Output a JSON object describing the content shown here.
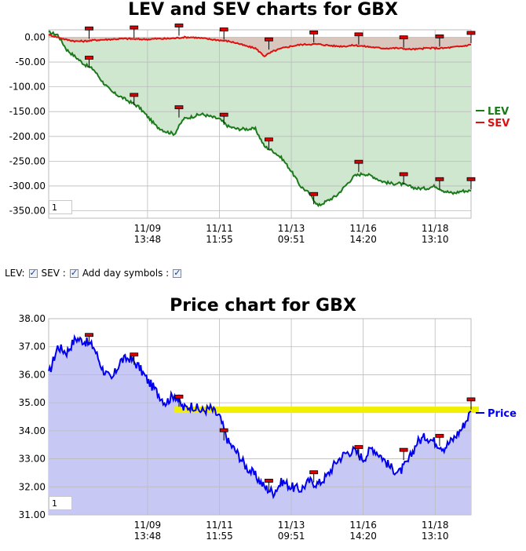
{
  "colors": {
    "lev": "#1a7a1a",
    "sev": "#e01010",
    "price": "#0000ee",
    "lev_fill": "#cfe6cf",
    "sev_fill": "#d9c6bc",
    "price_fill": "#c8c8f4",
    "highlight": "#f0f000",
    "marker": "#dd0000"
  },
  "controls": {
    "lev_label": "LEV:",
    "lev_checked": true,
    "sev_label": "SEV :",
    "sev_checked": true,
    "day_symbols_label": "Add day symbols :",
    "day_symbols_checked": true
  },
  "chart_data": [
    {
      "type": "line",
      "title": "LEV and SEV charts for GBX",
      "xlabel": "",
      "ylabel": "",
      "ylim": [
        -365,
        15
      ],
      "yticks": [
        "0.00",
        "-50.00",
        "-100.00",
        "-150.00",
        "-200.00",
        "-250.00",
        "-300.00",
        "-350.00"
      ],
      "ytick_values": [
        0,
        -50,
        -100,
        -150,
        -200,
        -250,
        -300,
        -350
      ],
      "xticks": [
        {
          "date": "11/09",
          "time": "13:48"
        },
        {
          "date": "11/11",
          "time": "11:55"
        },
        {
          "date": "11/13",
          "time": "09:51"
        },
        {
          "date": "11/16",
          "time": "14:20"
        },
        {
          "date": "11/18",
          "time": "13:10"
        }
      ],
      "xtick_positions": [
        11,
        19,
        27,
        35,
        43
      ],
      "x_range": [
        0,
        47
      ],
      "grid": true,
      "legend_position": "right",
      "zoom_value": "1",
      "day_markers_x": [
        4.5,
        9.5,
        14.5,
        19.5,
        24.5,
        29.5,
        34.5,
        39.5,
        43.5,
        47
      ],
      "series": [
        {
          "name": "LEV",
          "x": [
            0,
            1,
            2,
            3,
            4,
            5,
            6,
            7,
            8,
            9,
            10,
            11,
            12,
            13,
            14,
            15,
            16,
            17,
            18,
            19,
            20,
            21,
            22,
            23,
            24,
            25,
            26,
            27,
            28,
            29,
            30,
            31,
            32,
            33,
            34,
            35,
            36,
            37,
            38,
            39,
            40,
            41,
            42,
            43,
            44,
            45,
            46,
            47
          ],
          "values": [
            10,
            5,
            -25,
            -40,
            -55,
            -65,
            -90,
            -110,
            -120,
            -130,
            -140,
            -160,
            -180,
            -190,
            -195,
            -165,
            -160,
            -155,
            -160,
            -165,
            -180,
            -185,
            -185,
            -185,
            -220,
            -230,
            -245,
            -270,
            -300,
            -315,
            -340,
            -330,
            -320,
            -300,
            -280,
            -275,
            -280,
            -290,
            -295,
            -295,
            -300,
            -305,
            -305,
            -300,
            -310,
            -315,
            -310,
            -310
          ]
        },
        {
          "name": "SEV",
          "x": [
            0,
            1,
            2,
            3,
            4,
            5,
            6,
            7,
            8,
            9,
            10,
            11,
            12,
            13,
            14,
            15,
            16,
            17,
            18,
            19,
            20,
            21,
            22,
            23,
            24,
            25,
            26,
            27,
            28,
            29,
            30,
            31,
            32,
            33,
            34,
            35,
            36,
            37,
            38,
            39,
            40,
            41,
            42,
            43,
            44,
            45,
            46,
            47
          ],
          "values": [
            5,
            0,
            -5,
            -8,
            -8,
            -6,
            -5,
            -4,
            -3,
            -3,
            -4,
            -4,
            -3,
            -3,
            -2,
            0,
            0,
            -2,
            -4,
            -6,
            -8,
            -12,
            -18,
            -22,
            -38,
            -28,
            -22,
            -18,
            -15,
            -14,
            -14,
            -16,
            -18,
            -18,
            -16,
            -18,
            -20,
            -22,
            -22,
            -22,
            -24,
            -24,
            -22,
            -22,
            -22,
            -20,
            -18,
            -15
          ]
        }
      ]
    },
    {
      "type": "area",
      "title": "Price chart for GBX",
      "xlabel": "",
      "ylabel": "",
      "ylim": [
        31.0,
        38.0
      ],
      "yticks": [
        "38.00",
        "37.00",
        "36.00",
        "35.00",
        "34.00",
        "33.00",
        "32.00",
        "31.00"
      ],
      "ytick_values": [
        38,
        37,
        36,
        35,
        34,
        33,
        32,
        31
      ],
      "xticks": [
        {
          "date": "11/09",
          "time": "13:48"
        },
        {
          "date": "11/11",
          "time": "11:55"
        },
        {
          "date": "11/13",
          "time": "09:51"
        },
        {
          "date": "11/16",
          "time": "14:20"
        },
        {
          "date": "11/18",
          "time": "13:10"
        }
      ],
      "xtick_positions": [
        11,
        19,
        27,
        35,
        43
      ],
      "x_range": [
        0,
        47
      ],
      "grid": true,
      "legend_position": "right",
      "zoom_value": "1",
      "highlight_level": 34.75,
      "highlight_x_start": 14,
      "day_markers_x": [
        4.5,
        9.5,
        14.5,
        19.5,
        24.5,
        29.5,
        34.5,
        39.5,
        43.5,
        47
      ],
      "series": [
        {
          "name": "Price",
          "x": [
            0,
            1,
            2,
            3,
            4,
            5,
            6,
            7,
            8,
            9,
            10,
            11,
            12,
            13,
            14,
            15,
            16,
            17,
            18,
            19,
            20,
            21,
            22,
            23,
            24,
            25,
            26,
            27,
            28,
            29,
            30,
            31,
            32,
            33,
            34,
            35,
            36,
            37,
            38,
            39,
            40,
            41,
            42,
            43,
            44,
            45,
            46,
            47
          ],
          "values": [
            36.0,
            37.0,
            36.8,
            37.3,
            37.2,
            37.0,
            36.2,
            35.8,
            36.5,
            36.6,
            36.3,
            35.8,
            35.4,
            35.0,
            35.3,
            34.8,
            34.9,
            34.7,
            34.8,
            34.5,
            33.6,
            33.2,
            32.7,
            32.4,
            32.0,
            31.8,
            32.2,
            32.0,
            31.9,
            32.2,
            32.1,
            32.4,
            32.9,
            33.2,
            33.3,
            33.0,
            33.4,
            33.1,
            32.7,
            32.5,
            32.9,
            33.6,
            33.8,
            33.6,
            33.4,
            33.7,
            34.1,
            34.7
          ]
        }
      ]
    }
  ]
}
